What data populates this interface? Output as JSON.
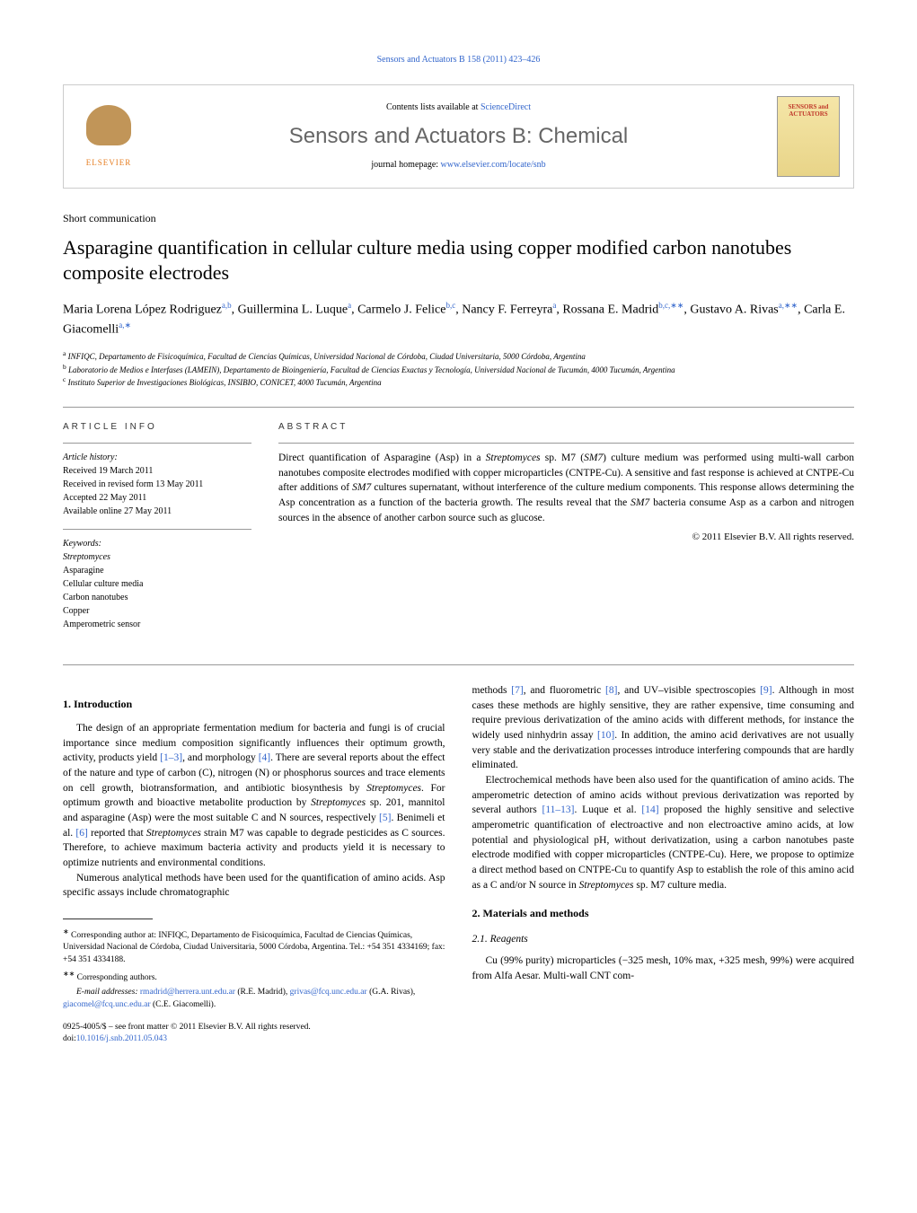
{
  "header_citation": "Sensors and Actuators B 158 (2011) 423–426",
  "contents_text": "Contents lists available at ",
  "contents_link": "ScienceDirect",
  "journal_title": "Sensors and Actuators B: Chemical",
  "homepage_text": "journal homepage: ",
  "homepage_link": "www.elsevier.com/locate/snb",
  "elsevier_name": "ELSEVIER",
  "cover_text": "SENSORS and ACTUATORS",
  "article_type": "Short communication",
  "title": "Asparagine quantification in cellular culture media using copper modified carbon nanotubes composite electrodes",
  "authors_line1": "Maria Lorena López Rodriguez",
  "author1_sup": "a,b",
  "author2": ", Guillermina L. Luque",
  "author2_sup": "a",
  "author3": ", Carmelo J. Felice",
  "author3_sup": "b,c",
  "author4": ", Nancy F. Ferreyra",
  "author4_sup": "a",
  "author5": ", Rossana E. Madrid",
  "author5_sup": "b,c,∗∗",
  "author6": ", Gustavo A. Rivas",
  "author6_sup": "a,∗∗",
  "author7": ", Carla E. Giacomelli",
  "author7_sup": "a,∗",
  "aff_a_sup": "a",
  "aff_a": " INFIQC, Departamento de Fisicoquímica, Facultad de Ciencias Químicas, Universidad Nacional de Córdoba, Ciudad Universitaria, 5000 Córdoba, Argentina",
  "aff_b_sup": "b",
  "aff_b": " Laboratorio de Medios e Interfases (LAMEIN), Departamento de Bioingeniería, Facultad de Ciencias Exactas y Tecnología, Universidad Nacional de Tucumán, 4000 Tucumán, Argentina",
  "aff_c_sup": "c",
  "aff_c": " Instituto Superior de Investigaciones Biológicas, INSIBIO, CONICET, 4000 Tucumán, Argentina",
  "info_header": "ARTICLE INFO",
  "history_label": "Article history:",
  "history_received": "Received 19 March 2011",
  "history_revised": "Received in revised form 13 May 2011",
  "history_accepted": "Accepted 22 May 2011",
  "history_online": "Available online 27 May 2011",
  "keywords_label": "Keywords:",
  "kw1": "Streptomyces",
  "kw2": "Asparagine",
  "kw3": "Cellular culture media",
  "kw4": "Carbon nanotubes",
  "kw5": "Copper",
  "kw6": "Amperometric sensor",
  "abstract_header": "ABSTRACT",
  "abstract_p1a": "Direct quantification of Asparagine (Asp) in a ",
  "abstract_p1b": "Streptomyces",
  "abstract_p1c": " sp. M7 (",
  "abstract_p1d": "SM7",
  "abstract_p1e": ") culture medium was performed using multi-wall carbon nanotubes composite electrodes modified with copper microparticles (CNTPE-Cu). A sensitive and fast response is achieved at CNTPE-Cu after additions of ",
  "abstract_p1f": "SM7",
  "abstract_p1g": " cultures supernatant, without interference of the culture medium components. This response allows determining the Asp concentration as a function of the bacteria growth. The results reveal that the ",
  "abstract_p1h": "SM7",
  "abstract_p1i": " bacteria consume Asp as a carbon and nitrogen sources in the absence of another carbon source such as glucose.",
  "copyright": "© 2011 Elsevier B.V. All rights reserved.",
  "h1": "1. Introduction",
  "p1a": "The design of an appropriate fermentation medium for bacteria and fungi is of crucial importance since medium composition significantly influences their optimum growth, activity, products yield ",
  "p1_ref1": "[1–3]",
  "p1b": ", and morphology ",
  "p1_ref2": "[4]",
  "p1c": ". There are several reports about the effect of the nature and type of carbon (C), nitrogen (N) or phosphorus sources and trace elements on cell growth, biotransformation, and antibiotic biosynthesis by ",
  "p1d": "Streptomyces",
  "p1e": ". For optimum growth and bioactive metabolite production by ",
  "p1f": "Streptomyces",
  "p1g": " sp. 201, mannitol and asparagine (Asp) were the most suitable C and N sources, respectively ",
  "p1_ref3": "[5]",
  "p1h": ". Benimeli et al. ",
  "p1_ref4": "[6]",
  "p1i": " reported that ",
  "p1j": "Streptomyces",
  "p1k": " strain M7 was capable to degrade pesticides as C sources. Therefore, to achieve maximum bacteria activity and products yield it is necessary to optimize nutrients and environmental conditions.",
  "p2": "Numerous analytical methods have been used for the quantification of amino acids. Asp specific assays include chromatographic",
  "p3a": "methods ",
  "p3_ref1": "[7]",
  "p3b": ", and fluorometric ",
  "p3_ref2": "[8]",
  "p3c": ", and UV–visible spectroscopies ",
  "p3_ref3": "[9]",
  "p3d": ". Although in most cases these methods are highly sensitive, they are rather expensive, time consuming and require previous derivatization of the amino acids with different methods, for instance the widely used ninhydrin assay ",
  "p3_ref4": "[10]",
  "p3e": ". In addition, the amino acid derivatives are not usually very stable and the derivatization processes introduce interfering compounds that are hardly eliminated.",
  "p4a": "Electrochemical methods have been also used for the quantification of amino acids. The amperometric detection of amino acids without previous derivatization was reported by several authors ",
  "p4_ref1": "[11–13]",
  "p4b": ". Luque et al. ",
  "p4_ref2": "[14]",
  "p4c": " proposed the highly sensitive and selective amperometric quantification of electroactive and non electroactive amino acids, at low potential and physiological pH, without derivatization, using a carbon nanotubes paste electrode modified with copper microparticles (CNTPE-Cu). Here, we propose to optimize a direct method based on CNTPE-Cu to quantify Asp to establish the role of this amino acid as a C and/or N source in ",
  "p4d": "Streptomyces",
  "p4e": " sp. M7 culture media.",
  "h2": "2. Materials and methods",
  "h2_1": "2.1. Reagents",
  "p5": "Cu (99% purity) microparticles (−325 mesh, 10% max, +325 mesh, 99%) were acquired from Alfa Aesar. Multi-wall CNT com-",
  "fn1_star": "∗",
  "fn1": " Corresponding author at: INFIQC, Departamento de Fisicoquímica, Facultad de Ciencias Químicas, Universidad Nacional de Córdoba, Ciudad Universitaria, 5000 Córdoba, Argentina. Tel.: +54 351 4334169; fax: +54 351 4334188.",
  "fn2_star": "∗∗",
  "fn2": " Corresponding authors.",
  "fn3_label": "E-mail addresses: ",
  "fn3_email1": "rmadrid@herrera.unt.edu.ar",
  "fn3_a": " (R.E. Madrid), ",
  "fn3_email2": "grivas@fcq.unc.edu.ar",
  "fn3_b": " (G.A. Rivas), ",
  "fn3_email3": "giacomel@fcq.unc.edu.ar",
  "fn3_c": " (C.E. Giacomelli).",
  "doi1": "0925-4005/$ – see front matter © 2011 Elsevier B.V. All rights reserved.",
  "doi2_label": "doi:",
  "doi2_link": "10.1016/j.snb.2011.05.043"
}
